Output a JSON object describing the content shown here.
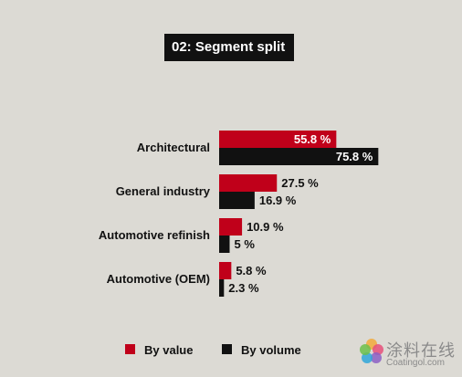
{
  "chart_data": {
    "type": "bar",
    "orientation": "horizontal",
    "title": "02: Segment split",
    "categories": [
      "Architectural",
      "General industry",
      "Automotive refinish",
      "Automotive (OEM)"
    ],
    "series": [
      {
        "name": "By value",
        "color": "#c0001a",
        "values": [
          55.8,
          27.5,
          10.9,
          5.8
        ],
        "labels": [
          "55.8 %",
          "27.5 %",
          "10.9 %",
          "5.8 %"
        ]
      },
      {
        "name": "By volume",
        "color": "#111111",
        "values": [
          75.8,
          16.9,
          5,
          2.3
        ],
        "labels": [
          "75.8 %",
          "16.9 %",
          "5 %",
          "2.3 %"
        ]
      }
    ],
    "legend_position": "bottom"
  },
  "watermark": {
    "line1": "涂料在线",
    "line2": "Coatingol.com"
  }
}
